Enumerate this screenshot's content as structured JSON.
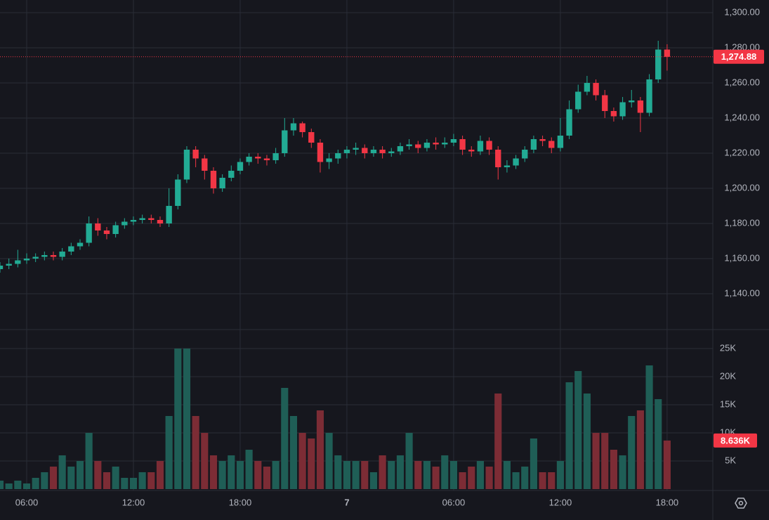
{
  "chart_data": {
    "type": "candlestick",
    "x": [
      4.5,
      5,
      5.5,
      6,
      6.5,
      7,
      7.5,
      8,
      8.5,
      9,
      9.5,
      10,
      10.5,
      11,
      11.5,
      12,
      12.5,
      13,
      13.5,
      14,
      14.5,
      15,
      15.5,
      16,
      16.5,
      17,
      17.5,
      18,
      18.5,
      19,
      19.5,
      20,
      20.5,
      21,
      21.5,
      22,
      22.5,
      23,
      23.5,
      24,
      24.5,
      25,
      25.5,
      26,
      26.5,
      27,
      27.5,
      28,
      28.5,
      29,
      29.5,
      30,
      30.5,
      31,
      31.5,
      32,
      32.5,
      33,
      33.5,
      34,
      34.5,
      35,
      35.5,
      36,
      36.5,
      37,
      37.5,
      38,
      38.5,
      39,
      39.5,
      40,
      40.5,
      41,
      41.5,
      42
    ],
    "open": [
      1154,
      1156,
      1157,
      1159,
      1160,
      1161,
      1162,
      1161,
      1164,
      1167,
      1169,
      1180,
      1176,
      1174,
      1179,
      1181,
      1182,
      1183,
      1182,
      1180,
      1190,
      1205,
      1222,
      1217,
      1210,
      1200,
      1206,
      1210,
      1215,
      1218,
      1217,
      1216,
      1220,
      1233,
      1237,
      1232,
      1226,
      1215,
      1217,
      1220,
      1222,
      1223,
      1220,
      1222,
      1220,
      1221,
      1224,
      1225,
      1223,
      1226,
      1225,
      1226,
      1228,
      1222,
      1221,
      1227,
      1222,
      1212,
      1213,
      1217,
      1222,
      1228,
      1227,
      1223,
      1230,
      1245,
      1255,
      1260,
      1253,
      1244,
      1241,
      1249,
      1250,
      1243,
      1262,
      1279
    ],
    "high": [
      1158,
      1160,
      1165,
      1163,
      1163,
      1164,
      1164,
      1166,
      1169,
      1171,
      1184,
      1183,
      1178,
      1181,
      1183,
      1184,
      1185,
      1185,
      1184,
      1200,
      1208,
      1224,
      1224,
      1219,
      1212,
      1208,
      1213,
      1217,
      1220,
      1220,
      1219,
      1223,
      1240,
      1240,
      1238,
      1234,
      1228,
      1220,
      1222,
      1224,
      1226,
      1225,
      1224,
      1224,
      1223,
      1226,
      1228,
      1227,
      1228,
      1229,
      1229,
      1231,
      1230,
      1224,
      1230,
      1229,
      1224,
      1216,
      1219,
      1224,
      1230,
      1230,
      1229,
      1240,
      1250,
      1259,
      1264,
      1262,
      1256,
      1246,
      1252,
      1256,
      1252,
      1265,
      1284,
      1282
    ],
    "low": [
      1152,
      1154,
      1155,
      1157,
      1158,
      1159,
      1159,
      1159,
      1162,
      1165,
      1167,
      1173,
      1171,
      1172,
      1177,
      1179,
      1180,
      1180,
      1178,
      1178,
      1188,
      1203,
      1212,
      1205,
      1197,
      1198,
      1204,
      1208,
      1213,
      1214,
      1213,
      1214,
      1218,
      1230,
      1229,
      1223,
      1209,
      1211,
      1214,
      1217,
      1219,
      1217,
      1218,
      1217,
      1218,
      1219,
      1222,
      1220,
      1221,
      1222,
      1223,
      1224,
      1219,
      1218,
      1219,
      1219,
      1205,
      1209,
      1211,
      1215,
      1220,
      1224,
      1220,
      1221,
      1228,
      1243,
      1253,
      1250,
      1240,
      1238,
      1239,
      1246,
      1232,
      1241,
      1260,
      1267
    ],
    "close": [
      1156,
      1157,
      1159,
      1160,
      1161,
      1162,
      1161,
      1164,
      1167,
      1169,
      1180,
      1176,
      1174,
      1179,
      1181,
      1182,
      1183,
      1182,
      1180,
      1190,
      1205,
      1222,
      1217,
      1210,
      1200,
      1206,
      1210,
      1215,
      1218,
      1217,
      1216,
      1220,
      1233,
      1237,
      1232,
      1226,
      1215,
      1217,
      1220,
      1222,
      1223,
      1220,
      1222,
      1220,
      1221,
      1224,
      1225,
      1223,
      1226,
      1225,
      1226,
      1228,
      1222,
      1221,
      1227,
      1222,
      1212,
      1213,
      1217,
      1222,
      1228,
      1227,
      1223,
      1230,
      1245,
      1255,
      1260,
      1253,
      1244,
      1241,
      1249,
      1250,
      1243,
      1262,
      1279,
      1274.88
    ],
    "volume": [
      1500,
      1000,
      1500,
      1000,
      2000,
      3000,
      4000,
      6000,
      4000,
      5000,
      10000,
      5000,
      3000,
      4000,
      2000,
      2000,
      3000,
      3000,
      5000,
      13000,
      25000,
      25000,
      13000,
      10000,
      6000,
      5000,
      6000,
      5000,
      7000,
      5000,
      4000,
      5000,
      18000,
      13000,
      10000,
      9000,
      14000,
      10000,
      6000,
      5000,
      5000,
      5000,
      3000,
      6000,
      5000,
      6000,
      10000,
      5000,
      5000,
      4000,
      6000,
      5000,
      3000,
      4000,
      5000,
      4000,
      17000,
      5000,
      3000,
      4000,
      9000,
      3000,
      3000,
      5000,
      19000,
      21000,
      17000,
      10000,
      10000,
      7000,
      6000,
      13000,
      14000,
      22000,
      16000,
      8636
    ],
    "last_labels": {
      "close": "1,274.88",
      "volume": "8.636K"
    },
    "up_color": "#22ab94",
    "down_color": "#f23645",
    "volume_up_color": "#1f5e56",
    "volume_down_color": "#7c2c35",
    "xlim": [
      4.5,
      44.57
    ],
    "xticks": [
      {
        "value": 6,
        "label": "06:00"
      },
      {
        "value": 12,
        "label": "12:00"
      },
      {
        "value": 18,
        "label": "18:00"
      },
      {
        "value": 24,
        "label": "7"
      },
      {
        "value": 30,
        "label": "06:00"
      },
      {
        "value": 36,
        "label": "12:00"
      },
      {
        "value": 42,
        "label": "18:00"
      }
    ],
    "ylim": [
      1120,
      1307.2
    ],
    "yticks": [
      {
        "value": 1140,
        "label": "1,140.00"
      },
      {
        "value": 1160,
        "label": "1,160.00"
      },
      {
        "value": 1180,
        "label": "1,180.00"
      },
      {
        "value": 1200,
        "label": "1,200.00"
      },
      {
        "value": 1220,
        "label": "1,220.00"
      },
      {
        "value": 1240,
        "label": "1,240.00"
      },
      {
        "value": 1260,
        "label": "1,260.00"
      },
      {
        "value": 1280,
        "label": "1,280.00"
      },
      {
        "value": 1300,
        "label": "1,300.00"
      }
    ],
    "y2lim": [
      0,
      28250
    ],
    "y2ticks": [
      {
        "value": 5000,
        "label": "5K"
      },
      {
        "value": 10000,
        "label": "10K"
      },
      {
        "value": 15000,
        "label": "15K"
      },
      {
        "value": 20000,
        "label": "20K"
      },
      {
        "value": 25000,
        "label": "25K"
      }
    ],
    "grid": true
  }
}
